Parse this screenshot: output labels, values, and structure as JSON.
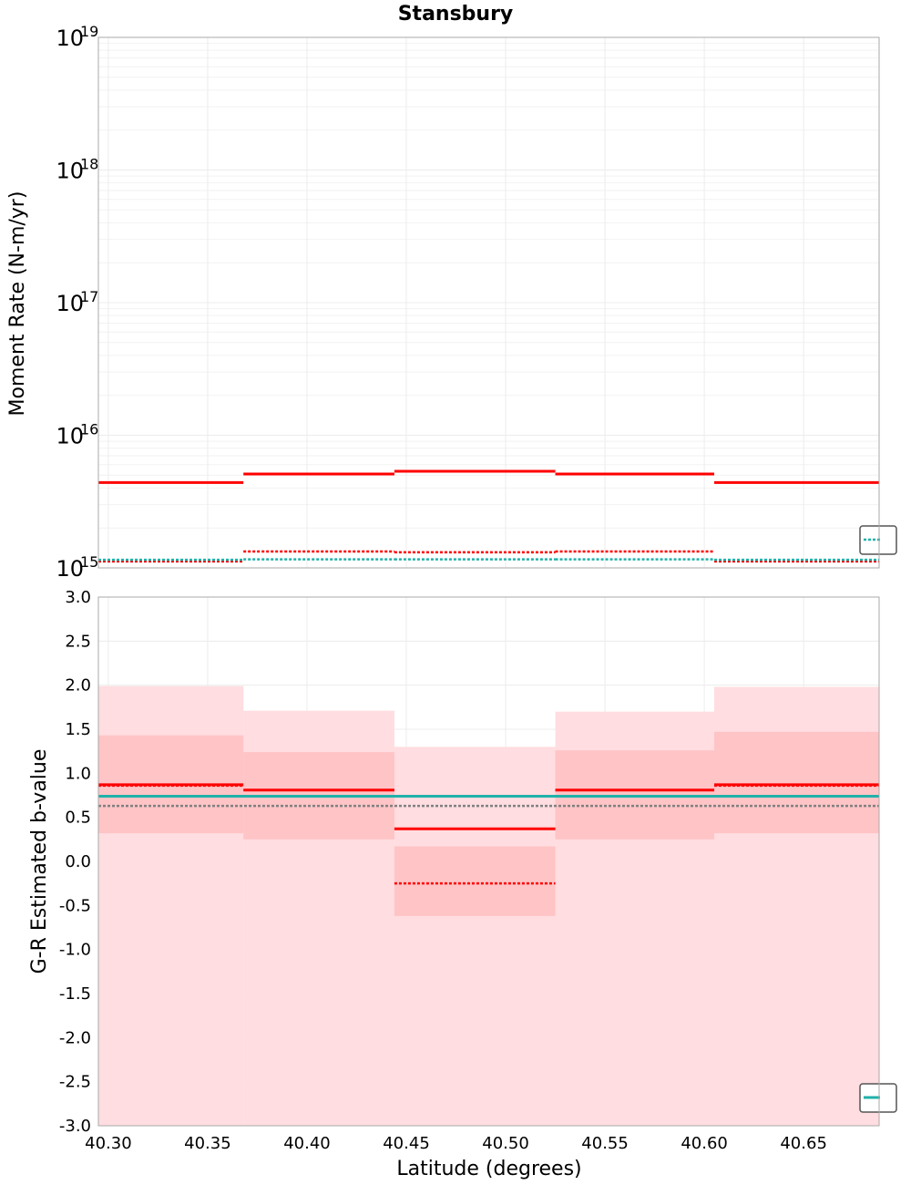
{
  "chart_data": {
    "title": "Stansbury",
    "xlabel": "Latitude (degrees)",
    "xlim": [
      40.295,
      40.688
    ],
    "xticks": [
      "40.30",
      "40.35",
      "40.40",
      "40.45",
      "40.50",
      "40.55",
      "40.60",
      "40.65"
    ],
    "bin_edges": [
      40.295,
      40.368,
      40.444,
      40.525,
      40.605,
      40.688
    ],
    "colors": {
      "red": "#ff0000",
      "teal": "#20b2aa",
      "gray": "#808080",
      "band_light": "#ffdde0",
      "band_dark": "#ffc4c6",
      "grid": "#ececec",
      "frame": "#aaaaaa"
    },
    "top": {
      "type": "line",
      "ylabel": "Moment Rate (N-m/yr)",
      "yscale": "log",
      "ylim": [
        1000000000000000.0,
        1e+19
      ],
      "yticks": [
        {
          "base": "10",
          "exp": "15",
          "value": 1000000000000000.0
        },
        {
          "base": "10",
          "exp": "16",
          "value": 1e+16
        },
        {
          "base": "10",
          "exp": "17",
          "value": 1e+17
        },
        {
          "base": "10",
          "exp": "18",
          "value": 1e+18
        },
        {
          "base": "10",
          "exp": "19",
          "value": 1e+19
        }
      ],
      "series": [
        {
          "name": "red-solid",
          "style": "solid",
          "color": "red",
          "values": [
            4400000000000000.0,
            5100000000000000.0,
            5350000000000000.0,
            5100000000000000.0,
            4400000000000000.0
          ]
        },
        {
          "name": "red-dotted",
          "style": "dotted",
          "color": "red",
          "values": [
            1120000000000000.0,
            1330000000000000.0,
            1310000000000000.0,
            1330000000000000.0,
            1120000000000000.0
          ]
        },
        {
          "name": "teal-dotted",
          "style": "dotted",
          "color": "teal",
          "values": [
            1150000000000000.0,
            1160000000000000.0,
            1160000000000000.0,
            1160000000000000.0,
            1150000000000000.0
          ]
        }
      ]
    },
    "bottom": {
      "type": "line",
      "ylabel": "G-R Estimated b-value",
      "ylim": [
        -3.0,
        3.0
      ],
      "yticks": [
        "3.0",
        "2.5",
        "2.0",
        "1.5",
        "1.0",
        "0.5",
        "0.0",
        "-0.5",
        "-1.0",
        "-1.5",
        "-2.0",
        "-2.5",
        "-3.0"
      ],
      "bands_outer": [
        [
          -3.0,
          1.99
        ],
        [
          -3.0,
          1.71
        ],
        [
          -3.0,
          1.3
        ],
        [
          -3.0,
          1.7
        ],
        [
          -3.0,
          1.98
        ]
      ],
      "bands_inner": [
        [
          0.32,
          1.43
        ],
        [
          0.25,
          1.24
        ],
        [
          -0.62,
          0.17
        ],
        [
          0.25,
          1.26
        ],
        [
          0.32,
          1.47
        ]
      ],
      "series": [
        {
          "name": "red-solid",
          "style": "solid",
          "color": "red",
          "values": [
            0.87,
            0.81,
            0.37,
            0.81,
            0.87
          ]
        },
        {
          "name": "red-dotted",
          "style": "dotted",
          "color": "red",
          "values": [
            0.86,
            0.74,
            -0.25,
            0.74,
            0.86
          ]
        },
        {
          "name": "teal-solid",
          "style": "solid",
          "color": "teal",
          "values": [
            0.74,
            0.74,
            0.74,
            0.74,
            0.74
          ]
        },
        {
          "name": "gray-dotted",
          "style": "dotted",
          "color": "gray",
          "values": [
            0.63,
            0.63,
            0.63,
            0.63,
            0.63
          ]
        }
      ]
    }
  }
}
